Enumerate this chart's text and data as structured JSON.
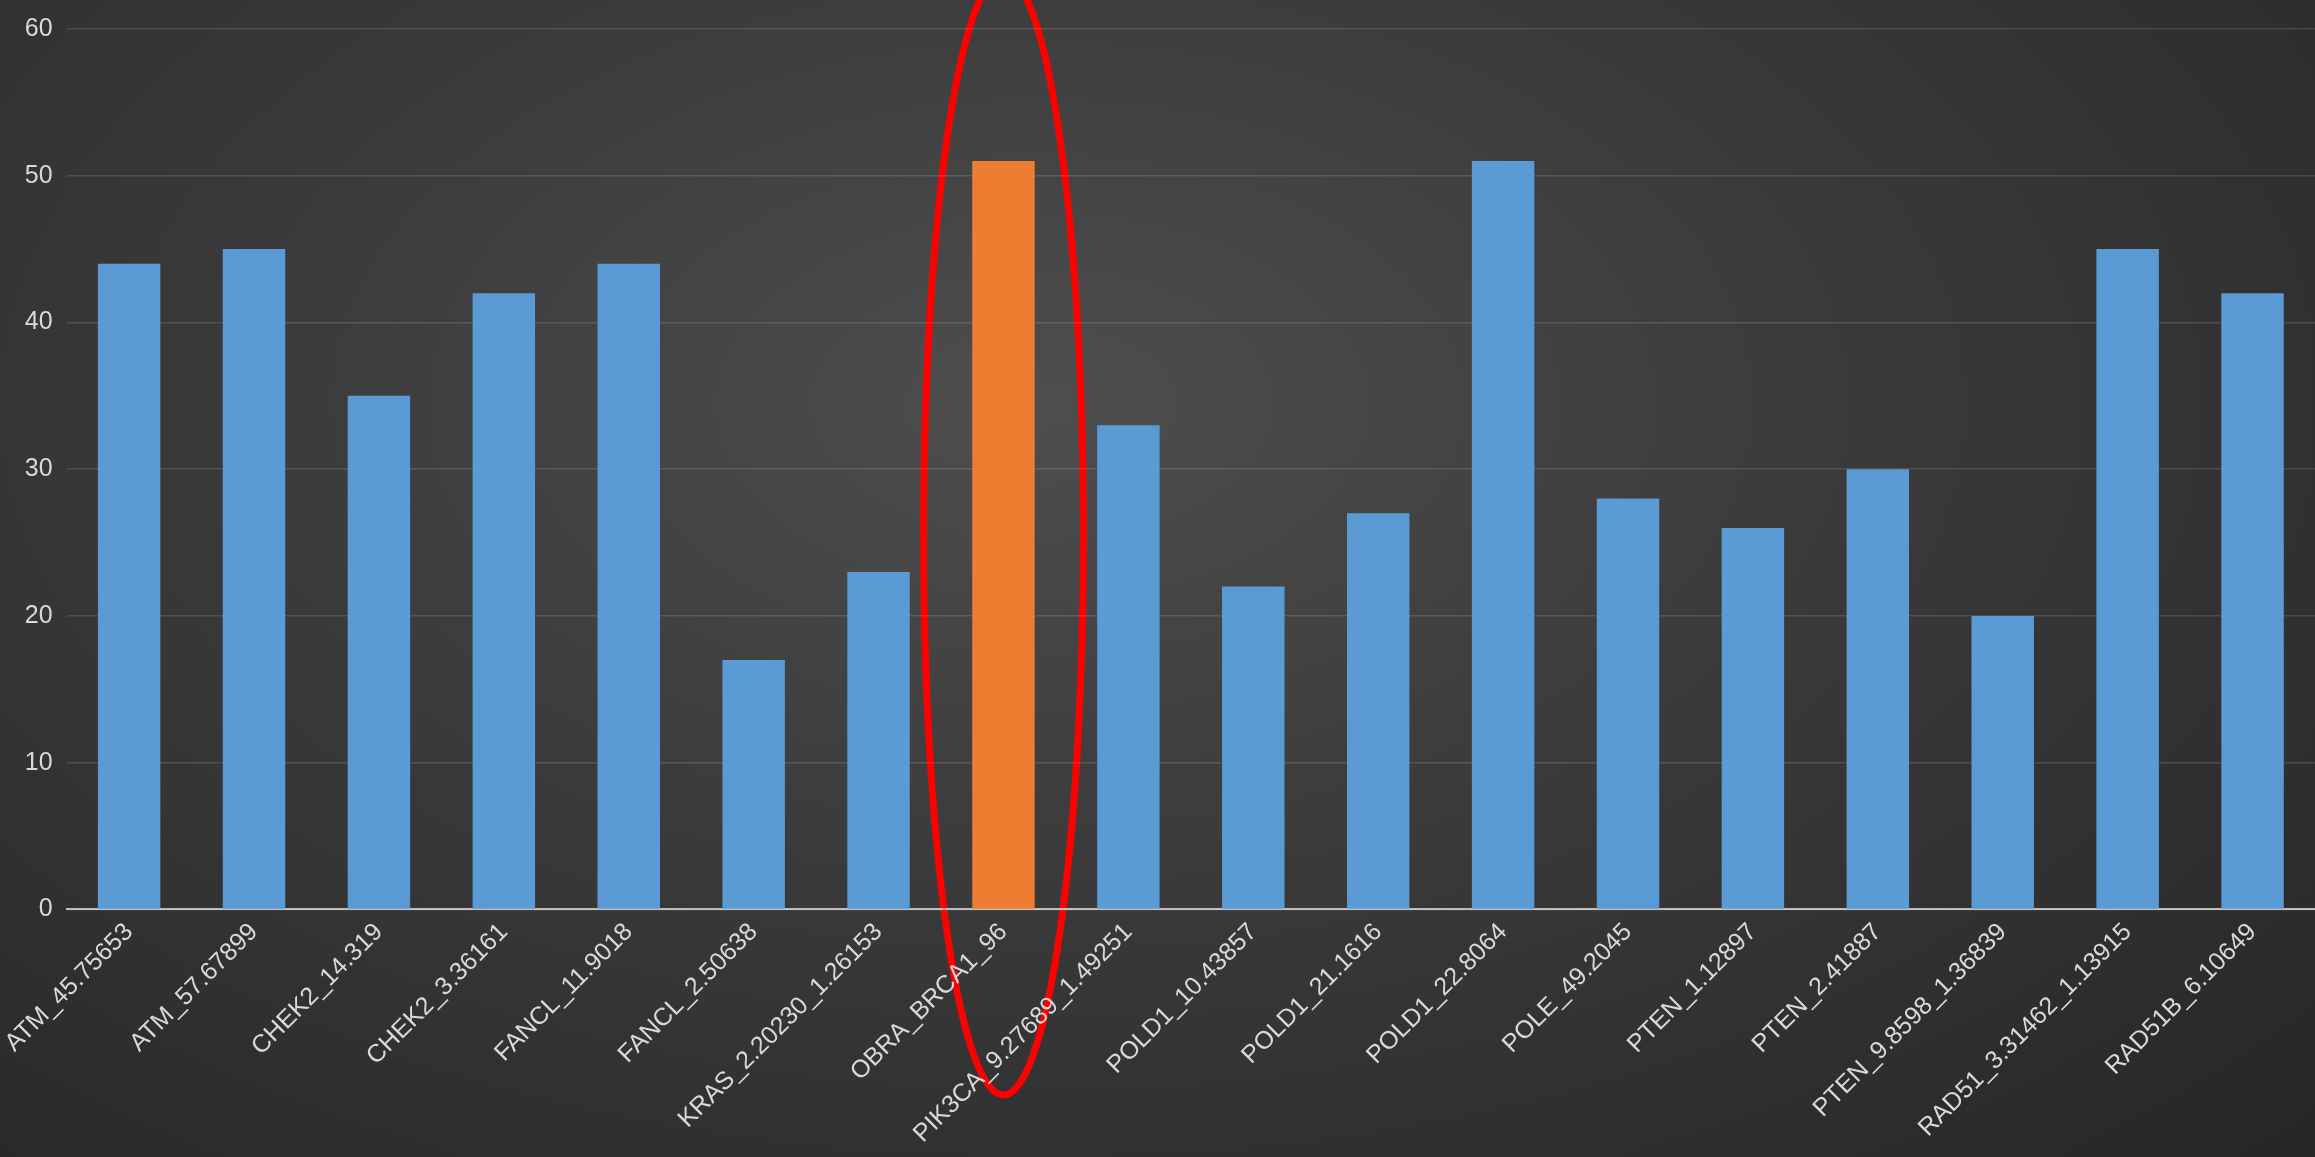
{
  "chart_data": {
    "type": "bar",
    "categories": [
      "ATM_45.75653",
      "ATM_57.67899",
      "CHEK2_14.319",
      "CHEK2_3.36161",
      "FANCL_11.9018",
      "FANCL_2.50638",
      "KRAS_2.20230_1.26153",
      "OBRA_BRCA1_96",
      "PIK3CA_9.27689_1.49251",
      "POLD1_10.43857",
      "POLD1_21.1616",
      "POLD1_22.8064",
      "POLE_49.2045",
      "PTEN_1.12897",
      "PTEN_2.41887",
      "PTEN_9.8598_1.36839",
      "RAD51_3.31462_1.13915",
      "RAD51B_6.10649"
    ],
    "values": [
      44,
      45,
      35,
      42,
      44,
      17,
      23,
      51,
      33,
      22,
      27,
      51,
      28,
      26,
      30,
      20,
      45,
      42
    ],
    "colors": [
      "#5b9bd5",
      "#5b9bd5",
      "#5b9bd5",
      "#5b9bd5",
      "#5b9bd5",
      "#5b9bd5",
      "#5b9bd5",
      "#ed7d31",
      "#5b9bd5",
      "#5b9bd5",
      "#5b9bd5",
      "#5b9bd5",
      "#5b9bd5",
      "#5b9bd5",
      "#5b9bd5",
      "#5b9bd5",
      "#5b9bd5",
      "#5b9bd5"
    ],
    "ylim": [
      0,
      60
    ],
    "yticks": [
      0,
      10,
      20,
      30,
      40,
      50,
      60
    ],
    "grid": "y"
  }
}
